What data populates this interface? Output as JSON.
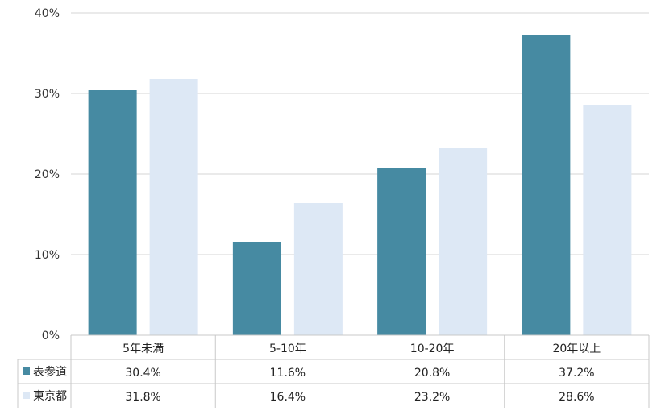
{
  "chart_data": {
    "type": "bar",
    "categories": [
      "5年未満",
      "5-10年",
      "10-20年",
      "20年以上"
    ],
    "series": [
      {
        "name": "表参道",
        "values": [
          30.4,
          11.6,
          20.8,
          37.2
        ],
        "color": "#468aa2",
        "labels": [
          "30.4%",
          "11.6%",
          "20.8%",
          "37.2%"
        ]
      },
      {
        "name": "東京都",
        "values": [
          31.8,
          16.4,
          23.2,
          28.6
        ],
        "color": "#dde8f5",
        "labels": [
          "31.8%",
          "16.4%",
          "23.2%",
          "28.6%"
        ]
      }
    ],
    "ylim": [
      0,
      40
    ],
    "yticks": [
      0,
      10,
      20,
      30,
      40
    ],
    "ytick_labels": [
      "0%",
      "10%",
      "20%",
      "30%",
      "40%"
    ],
    "grid": true,
    "legend": "data-table-left",
    "colors": {
      "grid": "#d4d4d4",
      "table_border": "#c8c8c8"
    }
  }
}
